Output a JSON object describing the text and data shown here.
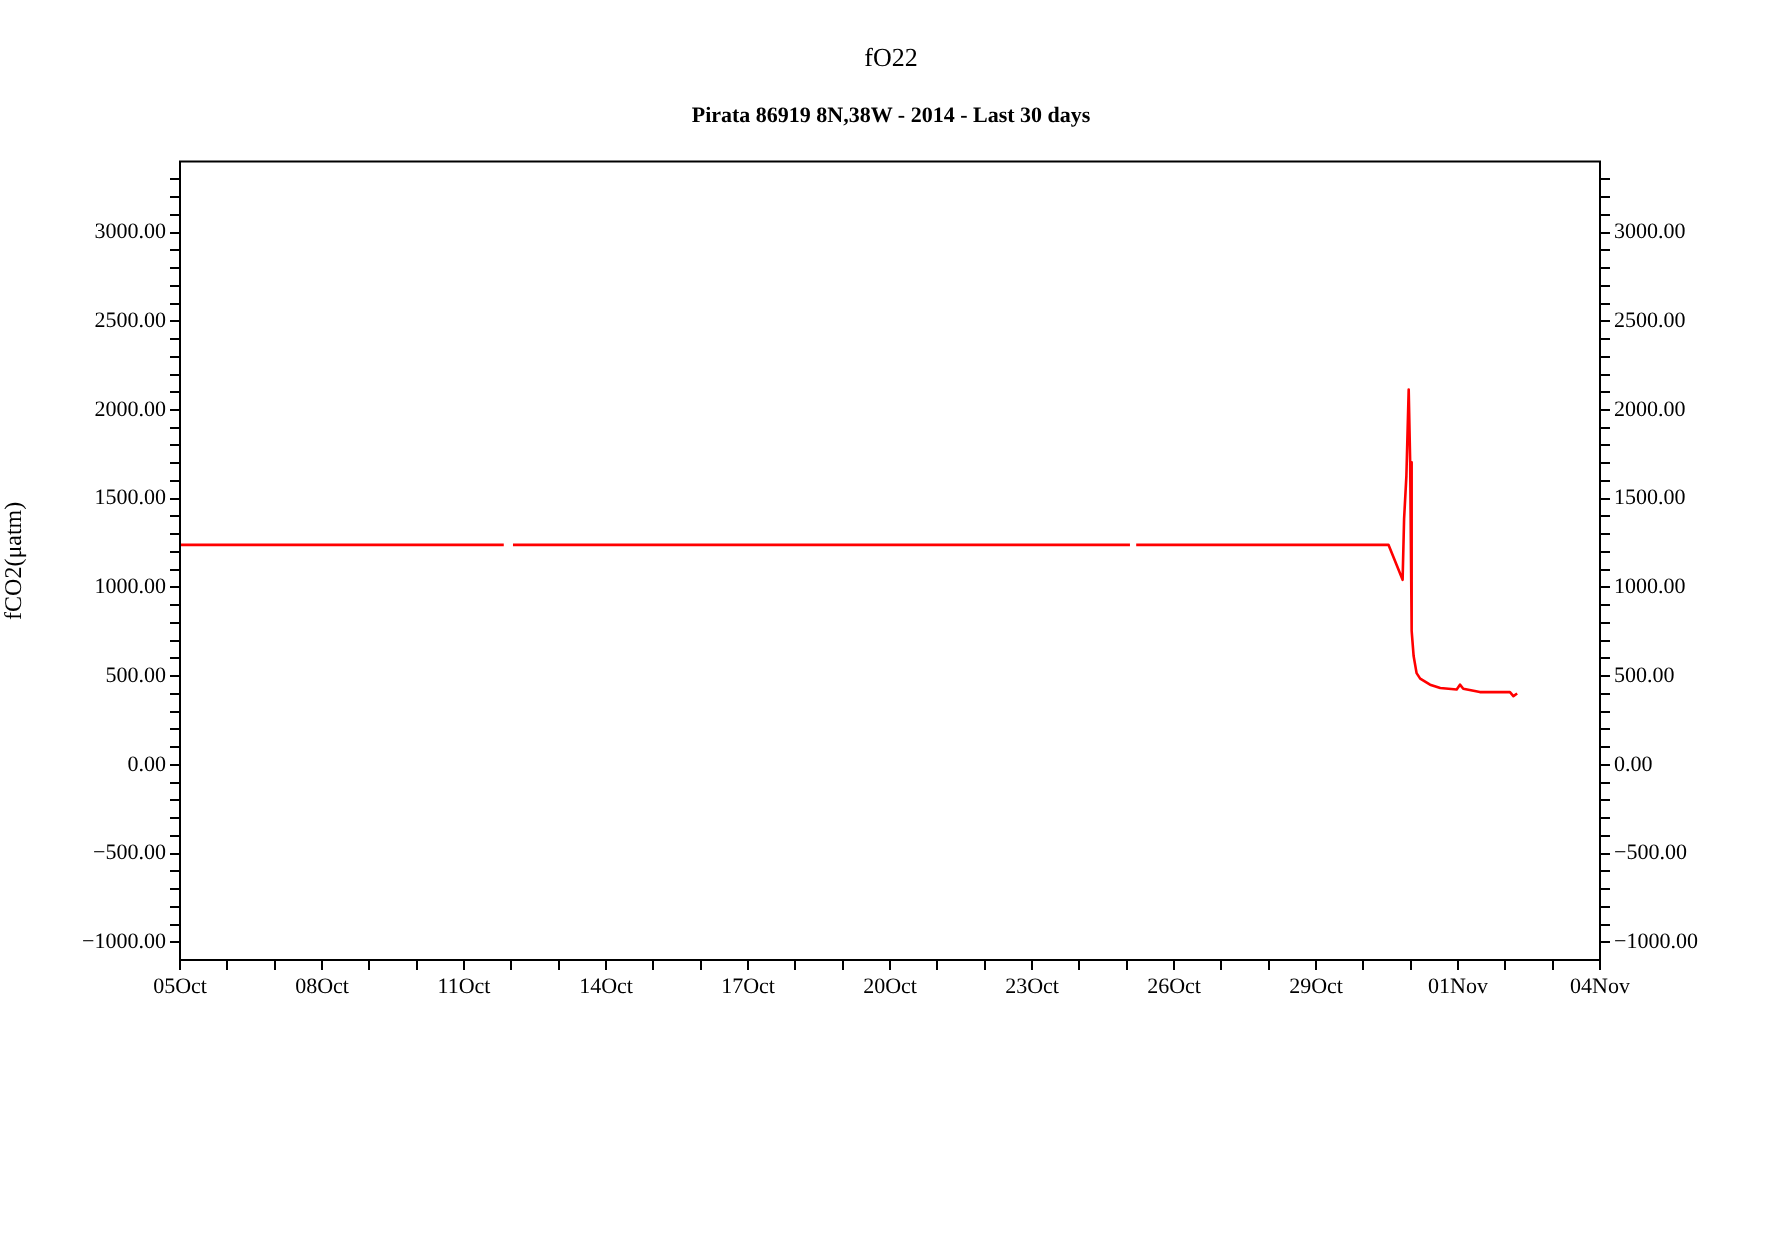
{
  "chart_data": {
    "type": "line",
    "title": "fO22",
    "subtitle": "Pirata 86919 8N,38W - 2014 - Last 30 days",
    "ylabel": "fCO2(μatm)",
    "x": [
      "2014-10-05",
      "2014-10-11T20:10",
      "2014-10-12T00:00",
      "2014-10-12T00:50",
      "2014-10-25T01:40",
      "2014-10-25T03:00",
      "2014-10-25T04:50",
      "2014-10-30T12:45",
      "2014-10-30T19:55",
      "2014-10-30T20:40",
      "2014-10-30T21:50",
      "2014-10-30T23:00",
      "2014-10-30T23:45",
      "2014-10-31T00:30",
      "2014-10-31T01:30",
      "2014-10-31T03:00",
      "2014-10-31T04:50",
      "2014-10-31T09:50",
      "2014-10-31T15:00",
      "2014-10-31T23:20",
      "2014-11-01T01:00",
      "2014-11-01T02:40",
      "2014-11-01T11:05",
      "2014-11-02T02:20",
      "2014-11-02T04:05",
      "2014-11-02T06:00"
    ],
    "series": [
      {
        "color": "#ff0000",
        "values": [
          1240,
          1240,
          null,
          1240,
          1240,
          null,
          1240,
          1240,
          1043,
          1387,
          1629,
          2115,
          1705,
          755,
          613,
          517,
          486,
          452,
          433,
          425,
          452,
          429,
          410,
          410,
          387,
          402
        ]
      }
    ],
    "xlim": [
      "2014-10-05",
      "2014-11-04"
    ],
    "xticks": [
      {
        "value": "2014-10-05",
        "label": "05Oct"
      },
      {
        "value": "2014-10-06",
        "label": null
      },
      {
        "value": "2014-10-07",
        "label": null
      },
      {
        "value": "2014-10-08",
        "label": "08Oct"
      },
      {
        "value": "2014-10-09",
        "label": null
      },
      {
        "value": "2014-10-10",
        "label": null
      },
      {
        "value": "2014-10-11",
        "label": "11Oct"
      },
      {
        "value": "2014-10-12",
        "label": null
      },
      {
        "value": "2014-10-13",
        "label": null
      },
      {
        "value": "2014-10-14",
        "label": "14Oct"
      },
      {
        "value": "2014-10-15",
        "label": null
      },
      {
        "value": "2014-10-16",
        "label": null
      },
      {
        "value": "2014-10-17",
        "label": "17Oct"
      },
      {
        "value": "2014-10-18",
        "label": null
      },
      {
        "value": "2014-10-19",
        "label": null
      },
      {
        "value": "2014-10-20",
        "label": "20Oct"
      },
      {
        "value": "2014-10-21",
        "label": null
      },
      {
        "value": "2014-10-22",
        "label": null
      },
      {
        "value": "2014-10-23",
        "label": "23Oct"
      },
      {
        "value": "2014-10-24",
        "label": null
      },
      {
        "value": "2014-10-25",
        "label": null
      },
      {
        "value": "2014-10-26",
        "label": "26Oct"
      },
      {
        "value": "2014-10-27",
        "label": null
      },
      {
        "value": "2014-10-28",
        "label": null
      },
      {
        "value": "2014-10-29",
        "label": "29Oct"
      },
      {
        "value": "2014-10-30",
        "label": null
      },
      {
        "value": "2014-10-31",
        "label": null
      },
      {
        "value": "2014-11-01",
        "label": "01Nov"
      },
      {
        "value": "2014-11-02",
        "label": null
      },
      {
        "value": "2014-11-03",
        "label": null
      },
      {
        "value": "2014-11-04",
        "label": "04Nov"
      }
    ],
    "ylim": [
      -1100,
      3400
    ],
    "yticks": [
      {
        "value": -1000,
        "label": "−1000.00"
      },
      {
        "value": -900,
        "label": null
      },
      {
        "value": -800,
        "label": null
      },
      {
        "value": -700,
        "label": null
      },
      {
        "value": -600,
        "label": null
      },
      {
        "value": -500,
        "label": "−500.00"
      },
      {
        "value": -400,
        "label": null
      },
      {
        "value": -300,
        "label": null
      },
      {
        "value": -200,
        "label": null
      },
      {
        "value": -100,
        "label": null
      },
      {
        "value": 0,
        "label": "0.00"
      },
      {
        "value": 100,
        "label": null
      },
      {
        "value": 200,
        "label": null
      },
      {
        "value": 300,
        "label": null
      },
      {
        "value": 400,
        "label": null
      },
      {
        "value": 500,
        "label": "500.00"
      },
      {
        "value": 600,
        "label": null
      },
      {
        "value": 700,
        "label": null
      },
      {
        "value": 800,
        "label": null
      },
      {
        "value": 900,
        "label": null
      },
      {
        "value": 1000,
        "label": "1000.00"
      },
      {
        "value": 1100,
        "label": null
      },
      {
        "value": 1200,
        "label": null
      },
      {
        "value": 1300,
        "label": null
      },
      {
        "value": 1400,
        "label": null
      },
      {
        "value": 1500,
        "label": "1500.00"
      },
      {
        "value": 1600,
        "label": null
      },
      {
        "value": 1700,
        "label": null
      },
      {
        "value": 1800,
        "label": null
      },
      {
        "value": 1900,
        "label": null
      },
      {
        "value": 2000,
        "label": "2000.00"
      },
      {
        "value": 2100,
        "label": null
      },
      {
        "value": 2200,
        "label": null
      },
      {
        "value": 2300,
        "label": null
      },
      {
        "value": 2400,
        "label": null
      },
      {
        "value": 2500,
        "label": "2500.00"
      },
      {
        "value": 2600,
        "label": null
      },
      {
        "value": 2700,
        "label": null
      },
      {
        "value": 2800,
        "label": null
      },
      {
        "value": 2900,
        "label": null
      },
      {
        "value": 3000,
        "label": "3000.00"
      },
      {
        "value": 3100,
        "label": null
      },
      {
        "value": 3200,
        "label": null
      },
      {
        "value": 3300,
        "label": null
      }
    ],
    "y2lim": [
      -1100,
      3400
    ],
    "y2ticks": [
      {
        "value": -1000,
        "label": "−1000.00"
      },
      {
        "value": -900,
        "label": null
      },
      {
        "value": -800,
        "label": null
      },
      {
        "value": -700,
        "label": null
      },
      {
        "value": -600,
        "label": null
      },
      {
        "value": -500,
        "label": "−500.00"
      },
      {
        "value": -400,
        "label": null
      },
      {
        "value": -300,
        "label": null
      },
      {
        "value": -200,
        "label": null
      },
      {
        "value": -100,
        "label": null
      },
      {
        "value": 0,
        "label": "0.00"
      },
      {
        "value": 100,
        "label": null
      },
      {
        "value": 200,
        "label": null
      },
      {
        "value": 300,
        "label": null
      },
      {
        "value": 400,
        "label": null
      },
      {
        "value": 500,
        "label": "500.00"
      },
      {
        "value": 600,
        "label": null
      },
      {
        "value": 700,
        "label": null
      },
      {
        "value": 800,
        "label": null
      },
      {
        "value": 900,
        "label": null
      },
      {
        "value": 1000,
        "label": "1000.00"
      },
      {
        "value": 1100,
        "label": null
      },
      {
        "value": 1200,
        "label": null
      },
      {
        "value": 1300,
        "label": null
      },
      {
        "value": 1400,
        "label": null
      },
      {
        "value": 1500,
        "label": "1500.00"
      },
      {
        "value": 1600,
        "label": null
      },
      {
        "value": 1700,
        "label": null
      },
      {
        "value": 1800,
        "label": null
      },
      {
        "value": 1900,
        "label": null
      },
      {
        "value": 2000,
        "label": "2000.00"
      },
      {
        "value": 2100,
        "label": null
      },
      {
        "value": 2200,
        "label": null
      },
      {
        "value": 2300,
        "label": null
      },
      {
        "value": 2400,
        "label": null
      },
      {
        "value": 2500,
        "label": "2500.00"
      },
      {
        "value": 2600,
        "label": null
      },
      {
        "value": 2700,
        "label": null
      },
      {
        "value": 2800,
        "label": null
      },
      {
        "value": 2900,
        "label": null
      },
      {
        "value": 3000,
        "label": "3000.00"
      },
      {
        "value": 3100,
        "label": null
      },
      {
        "value": 3200,
        "label": null
      },
      {
        "value": 3300,
        "label": null
      }
    ],
    "grid": false,
    "legend": false,
    "marker": "none",
    "line_style": "solid"
  }
}
